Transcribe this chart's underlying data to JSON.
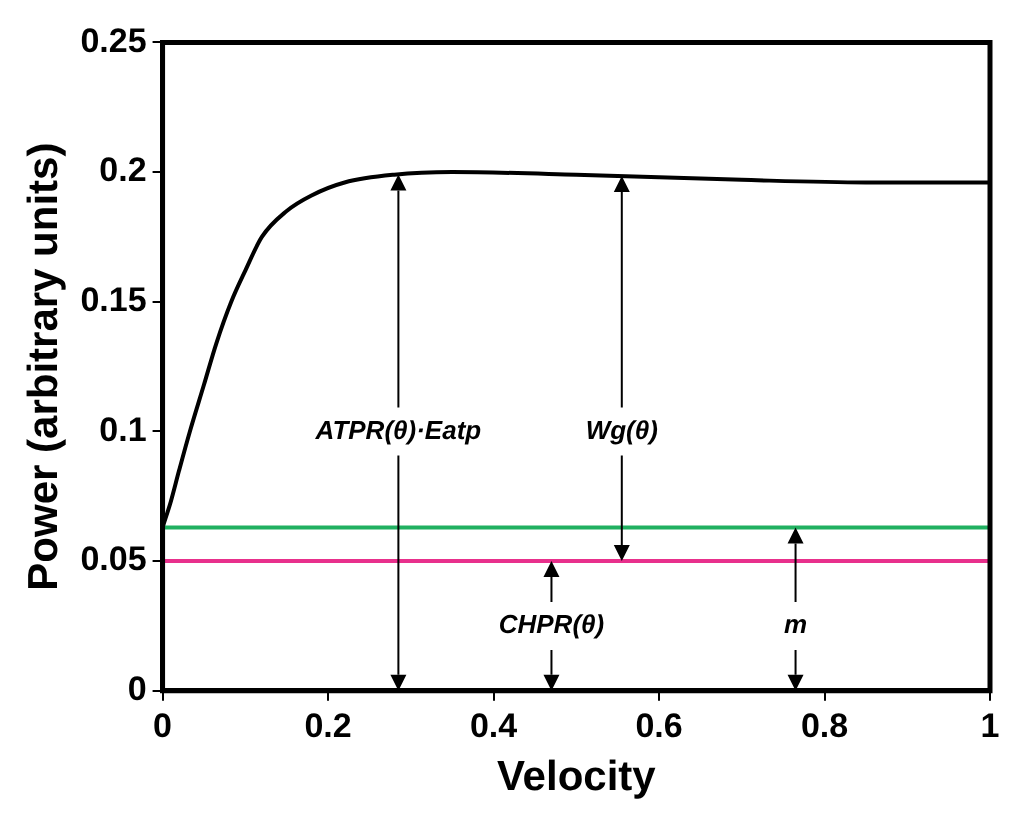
{
  "chart_data": {
    "type": "line",
    "xlabel": "Velocity",
    "ylabel": "Power (arbitrary units)",
    "x": [
      0,
      0.01,
      0.02,
      0.033,
      0.05,
      0.065,
      0.083,
      0.1,
      0.12,
      0.15,
      0.18,
      0.22,
      0.28,
      0.35,
      0.5,
      0.7,
      0.85,
      1
    ],
    "series": [
      {
        "color": "#000000",
        "values": [
          0.063,
          0.073,
          0.085,
          0.1,
          0.118,
          0.134,
          0.15,
          0.162,
          0.175,
          0.185,
          0.191,
          0.196,
          0.199,
          0.2,
          0.199,
          0.197,
          0.196,
          0.196
        ]
      }
    ],
    "xlim": [
      0,
      1
    ],
    "xticks": [
      0,
      0.2,
      0.4,
      0.6,
      0.8,
      1
    ],
    "ylim": [
      0,
      0.25
    ],
    "yticks": [
      0,
      0.05,
      0.1,
      0.15,
      0.2,
      0.25
    ],
    "ref_lines": [
      {
        "axis": "y",
        "value": 0.05,
        "color": "#e8308c"
      },
      {
        "axis": "y",
        "value": 0.063,
        "color": "#20b060"
      }
    ],
    "annotations": [
      "ATPR(θ)·Eatp",
      "Wg(θ)",
      "CHPR(θ)",
      "m"
    ],
    "grid": false,
    "legend": false,
    "marker": "none",
    "line_style": "solid"
  }
}
